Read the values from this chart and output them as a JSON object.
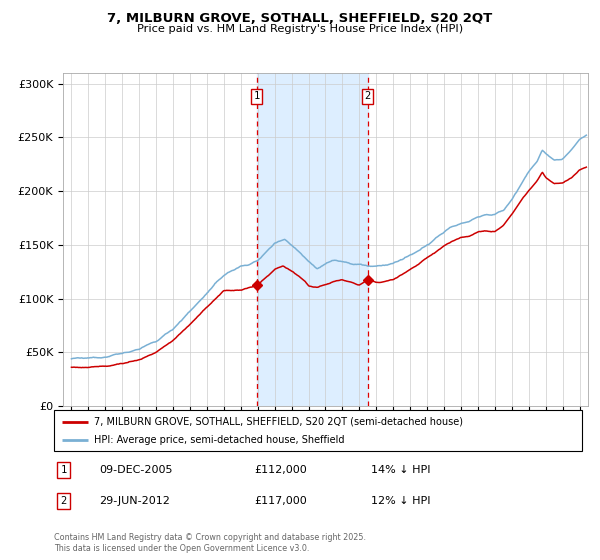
{
  "title": "7, MILBURN GROVE, SOTHALL, SHEFFIELD, S20 2QT",
  "subtitle": "Price paid vs. HM Land Registry's House Price Index (HPI)",
  "legend_property": "7, MILBURN GROVE, SOTHALL, SHEFFIELD, S20 2QT (semi-detached house)",
  "legend_hpi": "HPI: Average price, semi-detached house, Sheffield",
  "footnote": "Contains HM Land Registry data © Crown copyright and database right 2025.\nThis data is licensed under the Open Government Licence v3.0.",
  "transactions": [
    {
      "label": "1",
      "date": "09-DEC-2005",
      "price": 112000,
      "note": "14% ↓ HPI",
      "x_year": 2005.94
    },
    {
      "label": "2",
      "date": "29-JUN-2012",
      "price": 117000,
      "note": "12% ↓ HPI",
      "x_year": 2012.49
    }
  ],
  "property_color": "#cc0000",
  "hpi_color": "#7ab0d4",
  "shading_color": "#ddeeff",
  "ylim": [
    0,
    310000
  ],
  "yticks": [
    0,
    50000,
    100000,
    150000,
    200000,
    250000,
    300000
  ],
  "ytick_labels": [
    "£0",
    "£50K",
    "£100K",
    "£150K",
    "£200K",
    "£250K",
    "£300K"
  ],
  "xlim_start": 1994.5,
  "xlim_end": 2025.5,
  "xticks": [
    1995,
    1996,
    1997,
    1998,
    1999,
    2000,
    2001,
    2002,
    2003,
    2004,
    2005,
    2006,
    2007,
    2008,
    2009,
    2010,
    2011,
    2012,
    2013,
    2014,
    2015,
    2016,
    2017,
    2018,
    2019,
    2020,
    2021,
    2022,
    2023,
    2024,
    2025
  ]
}
